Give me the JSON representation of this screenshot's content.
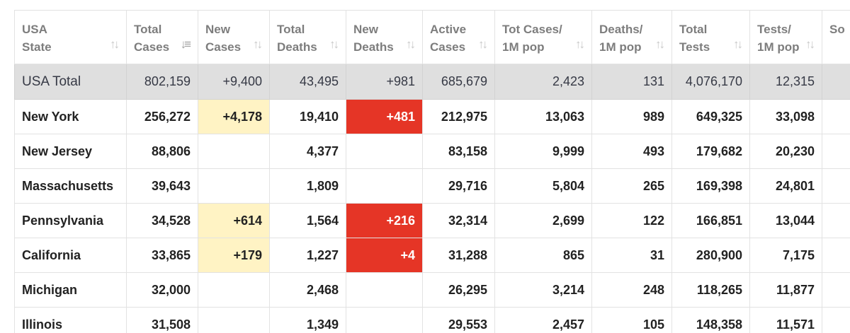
{
  "columns": [
    {
      "key": "state",
      "label": "USA\nState"
    },
    {
      "key": "total_cases",
      "label": "Total\nCases",
      "sorted": true
    },
    {
      "key": "new_cases",
      "label": "New\nCases"
    },
    {
      "key": "total_deaths",
      "label": "Total\nDeaths"
    },
    {
      "key": "new_deaths",
      "label": "New\nDeaths"
    },
    {
      "key": "active_cases",
      "label": "Active\nCases"
    },
    {
      "key": "cases_per_1m",
      "label": "Tot Cases/\n1M pop"
    },
    {
      "key": "deaths_per_1m",
      "label": "Deaths/\n1M pop"
    },
    {
      "key": "total_tests",
      "label": "Total\nTests"
    },
    {
      "key": "tests_per_1m",
      "label": "Tests/\n1M pop"
    },
    {
      "key": "source",
      "label": "So"
    }
  ],
  "icons": {
    "sort": "sort-arrows-icon",
    "sort_active": "sort-descending-icon"
  },
  "colors": {
    "new_cases_highlight": "#fff3c4",
    "new_deaths_highlight": "#e53526",
    "total_row_bg": "#dfdfdf"
  },
  "total_row": {
    "state": "USA Total",
    "total_cases": "802,159",
    "new_cases": "+9,400",
    "total_deaths": "43,495",
    "new_deaths": "+981",
    "active_cases": "685,679",
    "cases_per_1m": "2,423",
    "deaths_per_1m": "131",
    "total_tests": "4,076,170",
    "tests_per_1m": "12,315"
  },
  "rows": [
    {
      "state": "New York",
      "total_cases": "256,272",
      "new_cases": "+4,178",
      "total_deaths": "19,410",
      "new_deaths": "+481",
      "active_cases": "212,975",
      "cases_per_1m": "13,063",
      "deaths_per_1m": "989",
      "total_tests": "649,325",
      "tests_per_1m": "33,098"
    },
    {
      "state": "New Jersey",
      "total_cases": "88,806",
      "new_cases": "",
      "total_deaths": "4,377",
      "new_deaths": "",
      "active_cases": "83,158",
      "cases_per_1m": "9,999",
      "deaths_per_1m": "493",
      "total_tests": "179,682",
      "tests_per_1m": "20,230"
    },
    {
      "state": "Massachusetts",
      "total_cases": "39,643",
      "new_cases": "",
      "total_deaths": "1,809",
      "new_deaths": "",
      "active_cases": "29,716",
      "cases_per_1m": "5,804",
      "deaths_per_1m": "265",
      "total_tests": "169,398",
      "tests_per_1m": "24,801"
    },
    {
      "state": "Pennsylvania",
      "total_cases": "34,528",
      "new_cases": "+614",
      "total_deaths": "1,564",
      "new_deaths": "+216",
      "active_cases": "32,314",
      "cases_per_1m": "2,699",
      "deaths_per_1m": "122",
      "total_tests": "166,851",
      "tests_per_1m": "13,044"
    },
    {
      "state": "California",
      "total_cases": "33,865",
      "new_cases": "+179",
      "total_deaths": "1,227",
      "new_deaths": "+4",
      "active_cases": "31,288",
      "cases_per_1m": "865",
      "deaths_per_1m": "31",
      "total_tests": "280,900",
      "tests_per_1m": "7,175"
    },
    {
      "state": "Michigan",
      "total_cases": "32,000",
      "new_cases": "",
      "total_deaths": "2,468",
      "new_deaths": "",
      "active_cases": "26,295",
      "cases_per_1m": "3,214",
      "deaths_per_1m": "248",
      "total_tests": "118,265",
      "tests_per_1m": "11,877"
    },
    {
      "state": "Illinois",
      "total_cases": "31,508",
      "new_cases": "",
      "total_deaths": "1,349",
      "new_deaths": "",
      "active_cases": "29,553",
      "cases_per_1m": "2,457",
      "deaths_per_1m": "105",
      "total_tests": "148,358",
      "tests_per_1m": "11,571"
    }
  ]
}
